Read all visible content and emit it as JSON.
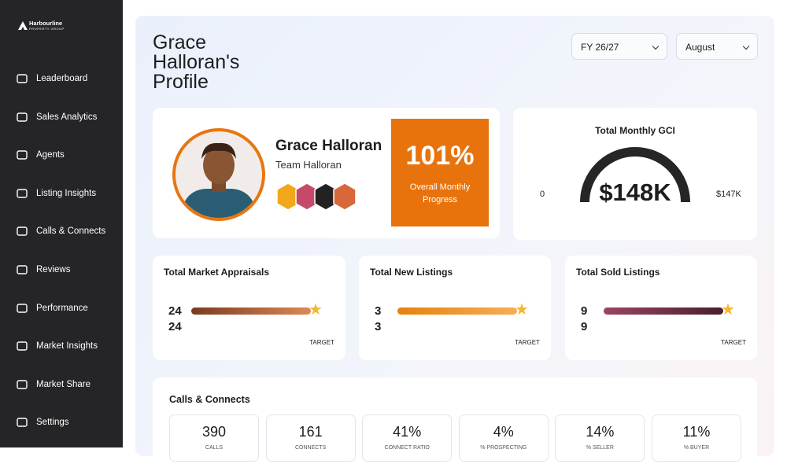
{
  "sidebar": {
    "logo": {
      "name": "Harbourline",
      "tagline": "PROPERTY GROUP"
    },
    "nav": [
      "Leaderboard",
      "Sales Analytics",
      "Agents",
      "Listing Insights",
      "Calls & Connects",
      "Reviews",
      "Performance",
      "Market Insights",
      "Market Share",
      "Settings"
    ]
  },
  "header": {
    "title": "Grace Halloran's Profile",
    "filters": [
      "FY 26/27",
      "August"
    ]
  },
  "profile": {
    "name": "Grace Halloran",
    "team": "Team Halloran",
    "progress": {
      "value": "101%",
      "label": "Overall Monthly Progress"
    }
  },
  "gci": {
    "title": "Total Monthly GCI",
    "value": "$148K",
    "min": "0",
    "max": "$147K"
  },
  "targets": [
    {
      "title": "Total Market Appraisals",
      "actual": "24",
      "target": "24",
      "target_label": "TARGET"
    },
    {
      "title": "Total New Listings",
      "actual": "3",
      "target": "3",
      "target_label": "TARGET"
    },
    {
      "title": "Total Sold Listings",
      "actual": "9",
      "target": "9",
      "target_label": "TARGET"
    }
  ],
  "calls": {
    "title": "Calls & Connects",
    "stats": [
      {
        "value": "390",
        "label": "CALLS"
      },
      {
        "value": "161",
        "label": "CONNECTS"
      },
      {
        "value": "41%",
        "label": "CONNECT RATIO"
      },
      {
        "value": "4%",
        "label": "% PROSPECTING"
      },
      {
        "value": "14%",
        "label": "% SELLER"
      },
      {
        "value": "11%",
        "label": "% BUYER"
      }
    ]
  }
}
